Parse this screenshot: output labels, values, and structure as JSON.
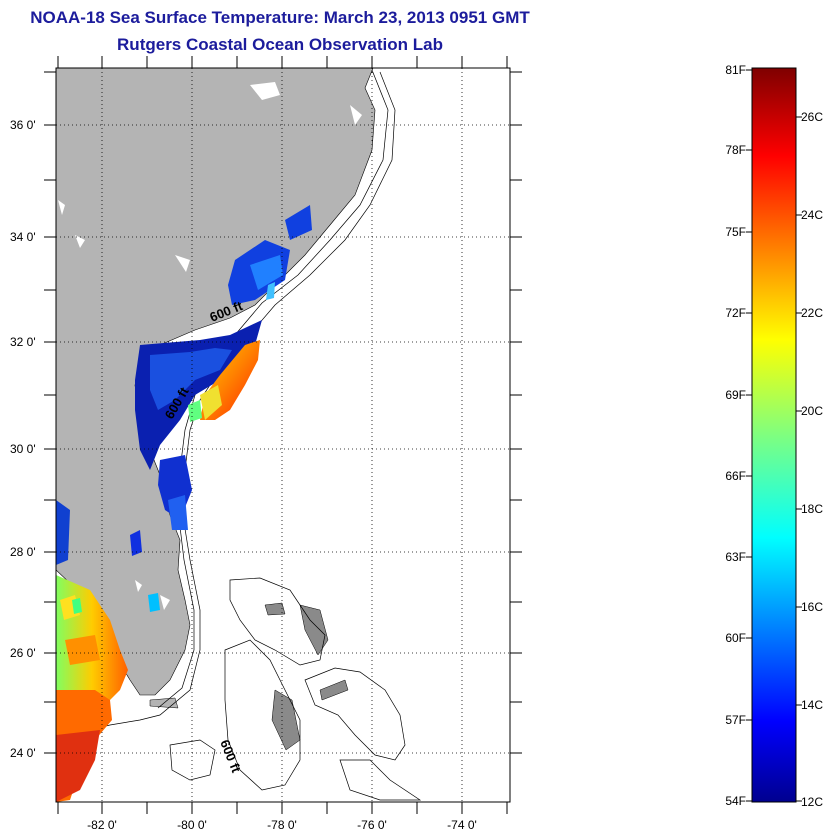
{
  "header": {
    "title": "NOAA-18 Sea Surface Temperature:  March 23, 2013 0951 GMT",
    "subtitle": "Rutgers Coastal Ocean Observation Lab"
  },
  "map": {
    "lat_ticks": [
      "36 0'",
      "34 0'",
      "32 0'",
      "30 0'",
      "28 0'",
      "26 0'",
      "24 0'"
    ],
    "lon_ticks": [
      "-82 0'",
      "-80 0'",
      "-78 0'",
      "-76 0'",
      "-74 0'"
    ],
    "isobath_labels": [
      "600 ft",
      "600 ft",
      "600 ft"
    ],
    "land_color": "#b4b4b4",
    "ocean_color": "#ffffff"
  },
  "colorbar": {
    "fahrenheit_labels": [
      "81F",
      "78F",
      "75F",
      "72F",
      "69F",
      "66F",
      "63F",
      "60F",
      "57F",
      "54F"
    ],
    "celsius_labels": [
      "26C",
      "24C",
      "22C",
      "20C",
      "18C",
      "16C",
      "14C",
      "12C"
    ],
    "colormap": "jet"
  }
}
